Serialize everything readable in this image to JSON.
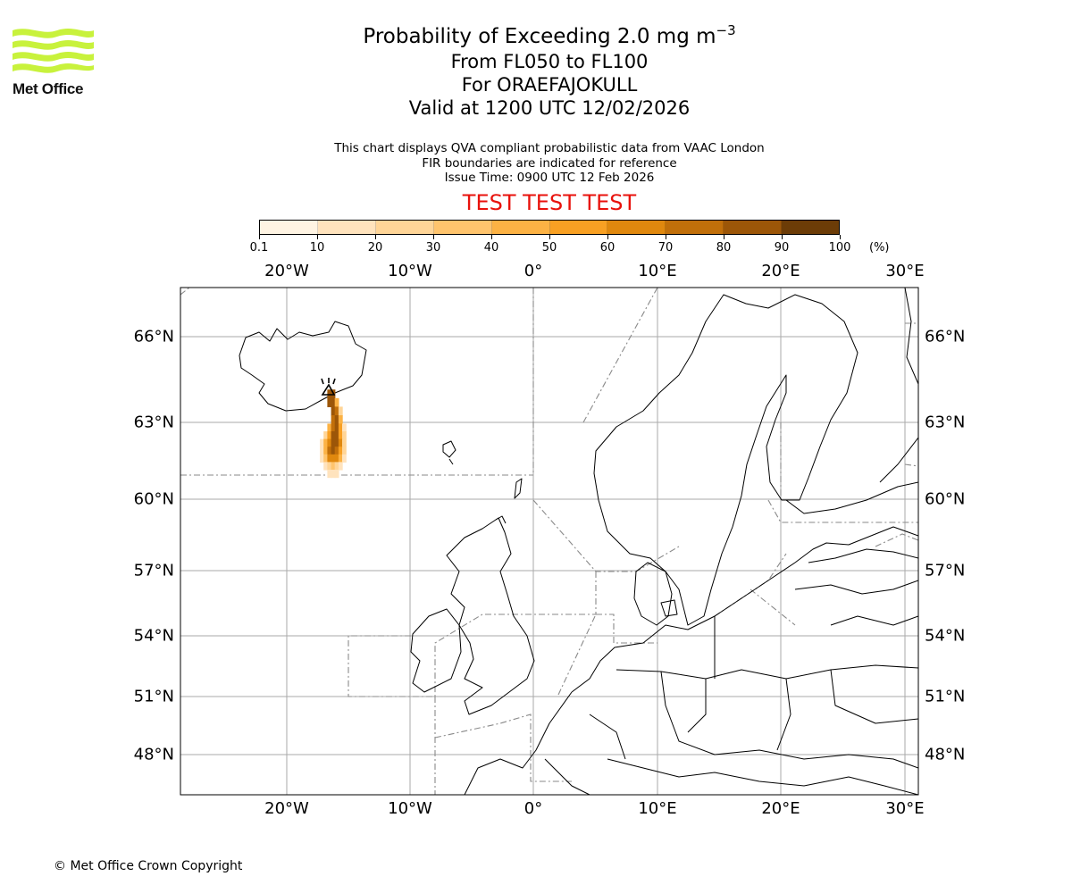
{
  "logo": {
    "text": "Met Office",
    "color": "#c8f23c"
  },
  "title": {
    "line1_prefix": "Probability of Exceeding 2.0 mg m",
    "line1_exponent": "−3",
    "line2": "From FL050 to FL100",
    "line3": "For ORAEFAJOKULL",
    "line4": "Valid at 1200 UTC 12/02/2026"
  },
  "description": [
    "This chart displays QVA compliant probabilistic data from VAAC London",
    "FIR boundaries are indicated for reference",
    "Issue Time: 0900 UTC 12 Feb 2026"
  ],
  "test_label": "TEST TEST TEST",
  "test_color": "#e8120c",
  "colorbar": {
    "ticks": [
      "0.1",
      "10",
      "20",
      "30",
      "40",
      "50",
      "60",
      "70",
      "80",
      "90",
      "100"
    ],
    "unit": "(%)",
    "colors": [
      "#fff4e3",
      "#ffe3bd",
      "#ffd597",
      "#ffc46d",
      "#fcb244",
      "#f8a023",
      "#e0880e",
      "#c16f0a",
      "#9c5608",
      "#6c3c07"
    ]
  },
  "axes": {
    "longitude_labels": [
      "20°W",
      "10°W",
      "0°",
      "10°E",
      "20°E",
      "30°E"
    ],
    "latitude_labels": [
      "66°N",
      "63°N",
      "60°N",
      "57°N",
      "54°N",
      "51°N",
      "48°N"
    ]
  },
  "map": {
    "volcano_marker": "volcano-triangle-icon",
    "plume_color_scale": "probability-percent",
    "plume_cells": [
      {
        "lon": -16.5,
        "lat": 64.0,
        "p": 85
      },
      {
        "lon": -16.2,
        "lat": 64.0,
        "p": 85
      },
      {
        "lon": -16.5,
        "lat": 63.7,
        "p": 80
      },
      {
        "lon": -16.2,
        "lat": 63.7,
        "p": 85
      },
      {
        "lon": -15.9,
        "lat": 63.7,
        "p": 40
      },
      {
        "lon": -16.2,
        "lat": 63.4,
        "p": 80
      },
      {
        "lon": -15.9,
        "lat": 63.4,
        "p": 70
      },
      {
        "lon": -15.6,
        "lat": 63.4,
        "p": 20
      },
      {
        "lon": -16.2,
        "lat": 63.1,
        "p": 70
      },
      {
        "lon": -15.9,
        "lat": 63.1,
        "p": 80
      },
      {
        "lon": -15.6,
        "lat": 63.1,
        "p": 40
      },
      {
        "lon": -16.5,
        "lat": 62.8,
        "p": 40
      },
      {
        "lon": -16.2,
        "lat": 62.8,
        "p": 70
      },
      {
        "lon": -15.9,
        "lat": 62.8,
        "p": 85
      },
      {
        "lon": -15.6,
        "lat": 62.8,
        "p": 50
      },
      {
        "lon": -15.3,
        "lat": 62.8,
        "p": 10
      },
      {
        "lon": -16.8,
        "lat": 62.5,
        "p": 20
      },
      {
        "lon": -16.5,
        "lat": 62.5,
        "p": 55
      },
      {
        "lon": -16.2,
        "lat": 62.5,
        "p": 80
      },
      {
        "lon": -15.9,
        "lat": 62.5,
        "p": 85
      },
      {
        "lon": -15.6,
        "lat": 62.5,
        "p": 55
      },
      {
        "lon": -15.3,
        "lat": 62.5,
        "p": 20
      },
      {
        "lon": -17.1,
        "lat": 62.2,
        "p": 15
      },
      {
        "lon": -16.8,
        "lat": 62.2,
        "p": 40
      },
      {
        "lon": -16.5,
        "lat": 62.2,
        "p": 65
      },
      {
        "lon": -16.2,
        "lat": 62.2,
        "p": 85
      },
      {
        "lon": -15.9,
        "lat": 62.2,
        "p": 80
      },
      {
        "lon": -15.6,
        "lat": 62.2,
        "p": 60
      },
      {
        "lon": -15.3,
        "lat": 62.2,
        "p": 25
      },
      {
        "lon": -17.1,
        "lat": 61.9,
        "p": 15
      },
      {
        "lon": -16.8,
        "lat": 61.9,
        "p": 45
      },
      {
        "lon": -16.5,
        "lat": 61.9,
        "p": 70
      },
      {
        "lon": -16.2,
        "lat": 61.9,
        "p": 80
      },
      {
        "lon": -15.9,
        "lat": 61.9,
        "p": 75
      },
      {
        "lon": -15.6,
        "lat": 61.9,
        "p": 55
      },
      {
        "lon": -15.3,
        "lat": 61.9,
        "p": 20
      },
      {
        "lon": -17.1,
        "lat": 61.6,
        "p": 10
      },
      {
        "lon": -16.8,
        "lat": 61.6,
        "p": 35
      },
      {
        "lon": -16.5,
        "lat": 61.6,
        "p": 60
      },
      {
        "lon": -16.2,
        "lat": 61.6,
        "p": 65
      },
      {
        "lon": -15.9,
        "lat": 61.6,
        "p": 60
      },
      {
        "lon": -15.6,
        "lat": 61.6,
        "p": 40
      },
      {
        "lon": -15.3,
        "lat": 61.6,
        "p": 15
      },
      {
        "lon": -16.8,
        "lat": 61.3,
        "p": 15
      },
      {
        "lon": -16.5,
        "lat": 61.3,
        "p": 25
      },
      {
        "lon": -16.2,
        "lat": 61.3,
        "p": 30
      },
      {
        "lon": -15.9,
        "lat": 61.3,
        "p": 25
      },
      {
        "lon": -15.6,
        "lat": 61.3,
        "p": 15
      },
      {
        "lon": -16.5,
        "lat": 61.0,
        "p": 10
      },
      {
        "lon": -16.2,
        "lat": 61.0,
        "p": 12
      },
      {
        "lon": -15.9,
        "lat": 61.0,
        "p": 10
      }
    ]
  },
  "copyright": "© Met Office Crown Copyright"
}
